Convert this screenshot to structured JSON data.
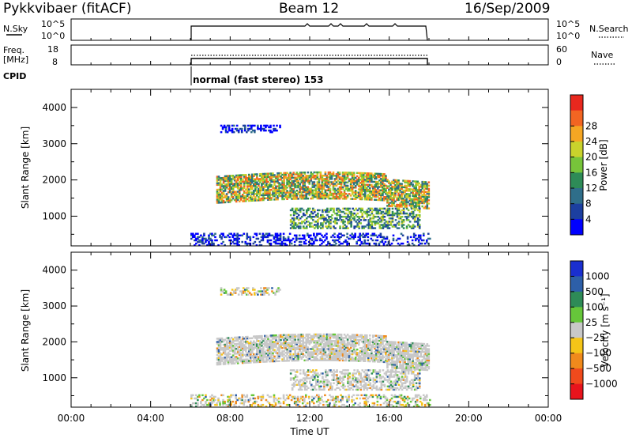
{
  "header": {
    "station": "Pykkvibaer (fitACF)",
    "beam": "Beam 12",
    "date": "16/Sep/2009"
  },
  "aux_panels": {
    "nsky": {
      "left_label": "N.Sky",
      "ticks_left": [
        "10^5",
        "10^0"
      ],
      "ticks_right": [
        "10^5",
        "10^0"
      ],
      "right_label": "N.Search"
    },
    "freq": {
      "left_label_line1": "Freq.",
      "left_label_line2": "[MHz]",
      "ticks_left": [
        "18",
        "8"
      ],
      "ticks_right": [
        "60",
        "0"
      ],
      "right_label": "Nave"
    },
    "cpid": {
      "left_label": "CPID",
      "text": "normal (fast stereo) 153"
    }
  },
  "chart_data": [
    {
      "type": "heatmap",
      "name": "power",
      "ylabel": "Slant Range [km]",
      "ylim": [
        180,
        4500
      ],
      "yticks": [
        1000,
        2000,
        3000,
        4000
      ],
      "xlim": [
        0,
        24
      ],
      "xticks": [
        "00:00",
        "04:00",
        "08:00",
        "12:00",
        "16:00",
        "20:00",
        "00:00"
      ],
      "xlabel": "",
      "colorbar": {
        "label": "Power [dB]",
        "ticks": [
          "4",
          "8",
          "12",
          "16",
          "20",
          "24",
          "28"
        ],
        "colors": [
          "#0000ff",
          "#1c3fa0",
          "#2f6e8a",
          "#2e8b57",
          "#77c43a",
          "#c9d22c",
          "#f5a623",
          "#f26522",
          "#e8281e"
        ]
      },
      "data_extent": {
        "t_start": 6.0,
        "t_end": 18.0
      },
      "bands": [
        {
          "t_start": 7.3,
          "t_end": 18.0,
          "r_low": 1350,
          "r_high": 2100,
          "level": "strong"
        },
        {
          "t_start": 7.5,
          "t_end": 10.5,
          "r_low": 3300,
          "r_high": 3500,
          "level": "weak"
        },
        {
          "t_start": 11.0,
          "t_end": 17.5,
          "r_low": 650,
          "r_high": 1200,
          "level": "medium"
        },
        {
          "t_start": 6.0,
          "t_end": 18.0,
          "r_low": 180,
          "r_high": 500,
          "level": "weak"
        }
      ]
    },
    {
      "type": "heatmap",
      "name": "velocity",
      "ylabel": "Slant Range [km]",
      "ylim": [
        180,
        4500
      ],
      "yticks": [
        1000,
        2000,
        3000,
        4000
      ],
      "xlim": [
        0,
        24
      ],
      "xticks": [
        "00:00",
        "04:00",
        "08:00",
        "12:00",
        "16:00",
        "20:00",
        "00:00"
      ],
      "xlabel": "Time UT",
      "colorbar": {
        "label": "Velocity [m s⁻¹]",
        "ticks": [
          "1000",
          "500",
          "100",
          "25",
          "−25",
          "−100",
          "−500",
          "−1000"
        ],
        "colors": [
          "#1a2fd0",
          "#2d5fa8",
          "#2e8b57",
          "#66c63a",
          "#c8c8c8",
          "#f5c518",
          "#f08a1c",
          "#f04a1c",
          "#e8141c"
        ]
      },
      "data_extent": {
        "t_start": 6.0,
        "t_end": 18.0
      }
    }
  ]
}
